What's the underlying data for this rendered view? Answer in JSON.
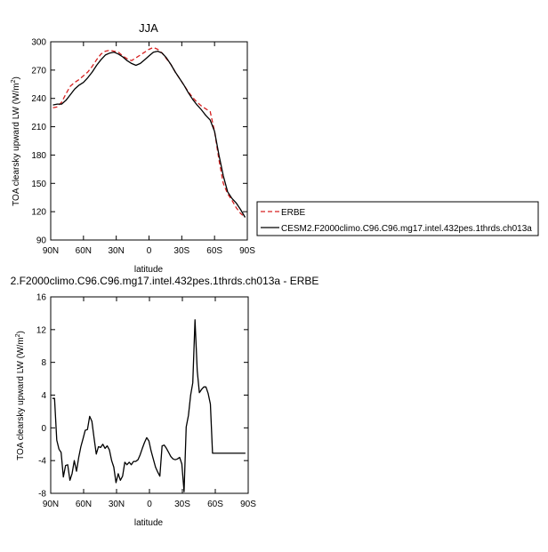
{
  "chart_data": [
    {
      "type": "line",
      "title": "JJA",
      "xlabel": "latitude",
      "ylabel": "TOA clearsky upward LW (W/m²)",
      "ylabel_main": "TOA clearsky upward LW (W/m",
      "ylabel_sup": "2",
      "ylabel_end": ")",
      "xlim": [
        90,
        -90
      ],
      "ylim": [
        90,
        300
      ],
      "x_ticks": [
        90,
        60,
        30,
        0,
        -30,
        -60,
        -90
      ],
      "x_tick_labels": [
        "90N",
        "60N",
        "30N",
        "0",
        "30S",
        "60S",
        "90S"
      ],
      "y_ticks": [
        90,
        120,
        150,
        180,
        210,
        240,
        270,
        300
      ],
      "y_tick_labels": [
        "90",
        "120",
        "150",
        "180",
        "210",
        "240",
        "270",
        "300"
      ],
      "legend_position": "right",
      "series": [
        {
          "name": "ERBE",
          "color": "#d62020",
          "dash": "dashed",
          "x": [
            88,
            84,
            80,
            76,
            72,
            68,
            64,
            60,
            56,
            52,
            48,
            44,
            40,
            36,
            32,
            28,
            24,
            20,
            16,
            12,
            8,
            4,
            0,
            -4,
            -8,
            -12,
            -16,
            -20,
            -24,
            -28,
            -32,
            -36,
            -40,
            -44,
            -48,
            -52,
            -56,
            -60,
            -64,
            -68,
            -72,
            -76,
            -80,
            -84,
            -88
          ],
          "values": [
            230,
            231,
            236,
            245,
            253,
            257,
            260,
            264,
            268,
            274,
            281,
            287,
            290,
            291,
            290,
            289,
            285,
            282,
            280,
            283,
            286,
            289,
            292,
            294,
            292,
            288,
            282,
            276,
            268,
            261,
            254,
            247,
            241,
            236,
            232,
            229,
            226,
            205,
            175,
            150,
            139,
            132,
            124,
            118,
            114
          ]
        },
        {
          "name": "CESM2.F2000climo.C96.C96.mg17.intel.432pes.1thrds.ch013a",
          "color": "#000000",
          "dash": "solid",
          "x": [
            88,
            84,
            80,
            76,
            72,
            68,
            64,
            60,
            56,
            52,
            48,
            44,
            40,
            36,
            32,
            28,
            24,
            20,
            16,
            12,
            8,
            4,
            0,
            -4,
            -8,
            -12,
            -16,
            -20,
            -24,
            -28,
            -32,
            -36,
            -40,
            -44,
            -48,
            -52,
            -56,
            -60,
            -64,
            -68,
            -72,
            -76,
            -80,
            -84,
            -88
          ],
          "values": [
            233,
            234,
            234,
            238,
            244,
            250,
            254,
            257,
            262,
            268,
            275,
            281,
            286,
            288,
            289,
            287,
            284,
            280,
            277,
            275,
            277,
            281,
            285,
            289,
            290,
            288,
            283,
            276,
            268,
            261,
            254,
            246,
            239,
            233,
            228,
            222,
            217,
            205,
            180,
            158,
            141,
            134,
            129,
            122,
            114
          ]
        }
      ]
    },
    {
      "type": "line",
      "title": "2.F2000climo.C96.C96.mg17.intel.432pes.1thrds.ch013a - ERBE",
      "xlabel": "latitude",
      "ylabel": "TOA clearsky upward LW (W/m²)",
      "ylabel_main": "TOA clearsky upward LW (W/m",
      "ylabel_sup": "2",
      "ylabel_end": ")",
      "xlim": [
        90,
        -90
      ],
      "ylim": [
        -8,
        16
      ],
      "x_ticks": [
        90,
        60,
        30,
        0,
        -30,
        -60,
        -90
      ],
      "x_tick_labels": [
        "90N",
        "60N",
        "30N",
        "0",
        "30S",
        "60S",
        "90S"
      ],
      "y_ticks": [
        -8,
        -4,
        0,
        4,
        8,
        12,
        16
      ],
      "y_tick_labels": [
        "-8",
        "-4",
        "0",
        "4",
        "8",
        "12",
        "16"
      ],
      "series": [
        {
          "color": "#000000",
          "dash": "solid",
          "x": [
            88.5,
            86.5,
            84.5,
            82.5,
            80.5,
            78.5,
            76.5,
            74.5,
            72.5,
            70.5,
            68.5,
            66.5,
            64.5,
            62.5,
            60.5,
            58.5,
            56.5,
            54.5,
            52.5,
            50.5,
            48.5,
            46.5,
            44.5,
            42.5,
            40.5,
            38.5,
            36.5,
            34.5,
            32.5,
            30.5,
            28.5,
            26.5,
            24.5,
            22.5,
            20.5,
            18.5,
            16.5,
            14.5,
            12.5,
            10.5,
            8.5,
            6.5,
            4.5,
            2.5,
            0.5,
            -1.5,
            -3.5,
            -5.5,
            -7.5,
            -9.5,
            -11.5,
            -13.5,
            -15.5,
            -17.5,
            -19.5,
            -21.5,
            -23.5,
            -25.5,
            -27.5,
            -29.5,
            -31.5,
            -33.5,
            -35.5,
            -37.5,
            -39.5,
            -41.5,
            -43.5,
            -45.5,
            -47.5,
            -49.5,
            -51.5,
            -53.5,
            -55.5,
            -57.5,
            -59.5,
            -61.5,
            -63.5,
            -65.5,
            -67.5,
            -69.5,
            -71.5,
            -73.5,
            -75.5,
            -77.5,
            -79.5,
            -81.5,
            -83.5,
            -85.5,
            -87.5
          ],
          "values": [
            3.6,
            3.6,
            -1.5,
            -2.6,
            -3.0,
            -6.0,
            -4.6,
            -4.5,
            -6.4,
            -5.6,
            -4.0,
            -5.3,
            -3.6,
            -2.3,
            -1.3,
            -0.3,
            -0.2,
            1.4,
            0.8,
            -1.2,
            -3.2,
            -2.3,
            -2.4,
            -2.0,
            -2.5,
            -2.2,
            -2.7,
            -4.0,
            -4.8,
            -6.7,
            -5.6,
            -6.4,
            -5.9,
            -4.2,
            -4.5,
            -4.2,
            -4.5,
            -4.1,
            -4.1,
            -3.9,
            -3.3,
            -2.5,
            -1.8,
            -1.2,
            -1.6,
            -2.8,
            -3.8,
            -4.8,
            -5.4,
            -5.9,
            -2.2,
            -2.1,
            -2.5,
            -3.0,
            -3.5,
            -3.8,
            -3.9,
            -3.8,
            -3.6,
            -4.4,
            -7.8,
            0.1,
            1.5,
            4.0,
            5.5,
            13.2,
            7.0,
            4.3,
            4.7,
            5.0,
            5.0,
            4.2,
            2.9,
            -3.1,
            -3.1,
            -3.1,
            -3.1,
            -3.1,
            -3.1,
            -3.1,
            -3.1,
            -3.1,
            -3.1,
            -3.1,
            -3.1,
            -3.1,
            -3.1,
            -3.1,
            -3.1
          ]
        }
      ]
    }
  ]
}
